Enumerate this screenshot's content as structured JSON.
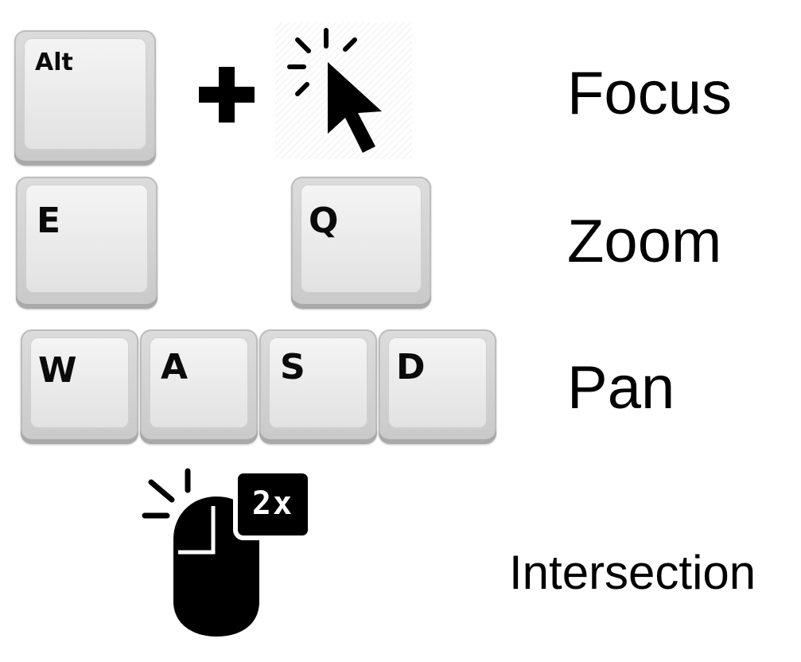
{
  "rows": [
    {
      "keys": [
        "Alt"
      ],
      "action": "Focus",
      "mouse": "click-cursor-icon"
    },
    {
      "keys": [
        "E",
        "Q"
      ],
      "action": "Zoom"
    },
    {
      "keys": [
        "W",
        "A",
        "S",
        "D"
      ],
      "action": "Pan"
    },
    {
      "mouse": "double-click-mouse-icon",
      "badge": "2x",
      "action": "Intersection"
    }
  ],
  "colors": {
    "text": "#000000",
    "key_face": "#e8e8e8",
    "key_edge": "#a9a9a9"
  }
}
